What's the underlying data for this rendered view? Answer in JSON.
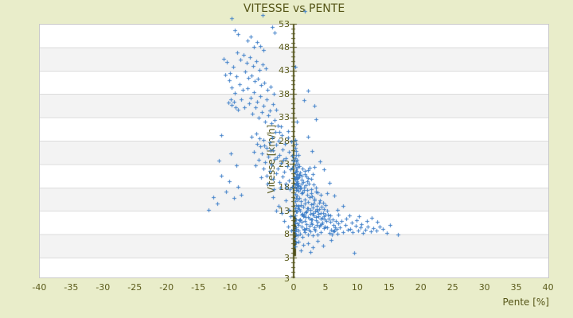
{
  "colors": {
    "background": "#e9edca",
    "plot_background": "#ffffff",
    "band": "#f3f3f3",
    "gridline": "#dcdcdc",
    "plot_border": "#c9c9c9",
    "axis": "#55551c",
    "axis_cluster": "#50501a",
    "text": "#5b5b1b",
    "marker": "#3d7ec8"
  },
  "chart_data": {
    "type": "scatter",
    "title": "VITESSE vs PENTE",
    "xlabel": "Pente [%]",
    "ylabel": "Vitesse [km/h]",
    "xlim": [
      -40,
      40
    ],
    "ylim": [
      3,
      53
    ],
    "x_ticks": [
      -40,
      -35,
      -30,
      -25,
      -20,
      -15,
      -10,
      -5,
      0,
      5,
      10,
      15,
      20,
      25,
      30,
      35,
      40
    ],
    "y_ticks": [
      53,
      48,
      43,
      38,
      33,
      28,
      23,
      18,
      13,
      8,
      3
    ],
    "y_axis_bottom_label": "3",
    "legend": "none",
    "grid": "horizontal-bands",
    "marker": "plus",
    "y_axis_position_x": 0,
    "axis_point_cluster": {
      "x": 0,
      "y_from": 3.3,
      "y_to": 11.9
    },
    "points": [
      [
        0.4,
        9.1
      ],
      [
        0.6,
        10.3
      ],
      [
        0.8,
        8.7
      ],
      [
        1.0,
        11.2
      ],
      [
        1.2,
        9.6
      ],
      [
        1.4,
        12.4
      ],
      [
        1.6,
        8.9
      ],
      [
        1.8,
        10.8
      ],
      [
        2.0,
        9.3
      ],
      [
        2.2,
        11.7
      ],
      [
        0.5,
        12.9
      ],
      [
        0.7,
        14.1
      ],
      [
        0.9,
        13.3
      ],
      [
        1.1,
        15.0
      ],
      [
        1.3,
        12.2
      ],
      [
        1.5,
        13.8
      ],
      [
        1.7,
        14.6
      ],
      [
        1.9,
        12.7
      ],
      [
        2.1,
        13.5
      ],
      [
        2.3,
        14.9
      ],
      [
        2.5,
        9.8
      ],
      [
        2.7,
        11.1
      ],
      [
        2.9,
        10.2
      ],
      [
        3.1,
        12.0
      ],
      [
        3.3,
        9.5
      ],
      [
        3.5,
        11.6
      ],
      [
        3.7,
        10.7
      ],
      [
        3.9,
        12.3
      ],
      [
        4.1,
        9.9
      ],
      [
        4.3,
        11.3
      ],
      [
        2.6,
        13.2
      ],
      [
        2.8,
        14.4
      ],
      [
        3.0,
        13.7
      ],
      [
        3.2,
        15.2
      ],
      [
        3.4,
        12.8
      ],
      [
        3.6,
        14.0
      ],
      [
        3.8,
        13.1
      ],
      [
        4.0,
        14.7
      ],
      [
        4.2,
        12.5
      ],
      [
        4.4,
        13.9
      ],
      [
        0.6,
        7.8
      ],
      [
        1.0,
        8.1
      ],
      [
        1.4,
        7.5
      ],
      [
        1.8,
        8.4
      ],
      [
        2.2,
        7.9
      ],
      [
        2.6,
        8.6
      ],
      [
        3.0,
        7.7
      ],
      [
        3.4,
        8.8
      ],
      [
        3.8,
        8.0
      ],
      [
        4.2,
        8.5
      ],
      [
        4.5,
        10.4
      ],
      [
        4.7,
        11.8
      ],
      [
        4.9,
        9.7
      ],
      [
        5.1,
        10.9
      ],
      [
        5.3,
        9.4
      ],
      [
        5.5,
        11.4
      ],
      [
        4.6,
        12.6
      ],
      [
        4.8,
        13.4
      ],
      [
        5.0,
        12.1
      ],
      [
        5.2,
        13.0
      ],
      [
        0.5,
        16.2
      ],
      [
        0.9,
        15.7
      ],
      [
        1.3,
        16.8
      ],
      [
        1.7,
        15.4
      ],
      [
        2.1,
        16.5
      ],
      [
        2.5,
        15.9
      ],
      [
        2.9,
        16.1
      ],
      [
        3.3,
        15.6
      ],
      [
        3.7,
        16.9
      ],
      [
        4.1,
        15.3
      ],
      [
        0.8,
        9.9
      ],
      [
        1.2,
        10.6
      ],
      [
        1.6,
        9.2
      ],
      [
        2.0,
        10.1
      ],
      [
        2.4,
        9.0
      ],
      [
        2.8,
        10.5
      ],
      [
        3.2,
        9.1
      ],
      [
        3.6,
        10.0
      ],
      [
        4.0,
        9.6
      ],
      [
        4.4,
        10.2
      ],
      [
        1.0,
        13.0
      ],
      [
        1.5,
        11.9
      ],
      [
        2.0,
        12.9
      ],
      [
        2.5,
        11.4
      ],
      [
        3.0,
        12.6
      ],
      [
        3.5,
        11.0
      ],
      [
        4.0,
        13.3
      ],
      [
        4.5,
        11.5
      ],
      [
        5.0,
        14.2
      ],
      [
        5.4,
        12.2
      ],
      [
        0.7,
        17.3
      ],
      [
        1.4,
        17.0
      ],
      [
        2.1,
        17.4
      ],
      [
        2.8,
        16.7
      ],
      [
        3.5,
        17.1
      ],
      [
        4.2,
        16.4
      ],
      [
        1.1,
        14.3
      ],
      [
        2.3,
        13.6
      ],
      [
        3.1,
        14.5
      ],
      [
        4.6,
        14.8
      ],
      [
        0.9,
        11.0
      ],
      [
        1.9,
        11.6
      ],
      [
        2.9,
        11.2
      ],
      [
        3.9,
        11.8
      ],
      [
        4.9,
        11.1
      ],
      [
        0.6,
        13.6
      ],
      [
        1.6,
        12.1
      ],
      [
        2.6,
        12.4
      ],
      [
        3.6,
        13.4
      ],
      [
        4.8,
        9.3
      ],
      [
        5.7,
        10.6
      ],
      [
        5.9,
        9.0
      ],
      [
        6.1,
        11.2
      ],
      [
        6.3,
        10.0
      ],
      [
        6.5,
        9.5
      ],
      [
        5.8,
        12.0
      ],
      [
        6.2,
        8.6
      ],
      [
        6.6,
        10.8
      ],
      [
        6.8,
        9.2
      ],
      [
        7.0,
        10.3
      ],
      [
        0.8,
        18.3
      ],
      [
        1.2,
        19.6
      ],
      [
        1.6,
        18.0
      ],
      [
        2.0,
        20.4
      ],
      [
        2.4,
        18.8
      ],
      [
        2.8,
        19.9
      ],
      [
        1.0,
        21.2
      ],
      [
        1.4,
        22.0
      ],
      [
        1.8,
        20.9
      ],
      [
        2.2,
        21.7
      ],
      [
        0.7,
        20.1
      ],
      [
        1.1,
        17.9
      ],
      [
        1.5,
        19.2
      ],
      [
        1.9,
        18.5
      ],
      [
        2.3,
        20.0
      ],
      [
        2.7,
        17.7
      ],
      [
        3.1,
        18.6
      ],
      [
        3.5,
        17.9
      ],
      [
        1.3,
        20.6
      ],
      [
        0.9,
        22.5
      ],
      [
        1.7,
        21.5
      ],
      [
        2.5,
        22.3
      ],
      [
        3.0,
        20.8
      ],
      [
        0.6,
        19.0
      ],
      [
        2.1,
        19.3
      ],
      [
        0.3,
        10.5
      ],
      [
        0.4,
        11.2
      ],
      [
        0.3,
        12.0
      ],
      [
        0.4,
        12.8
      ],
      [
        0.3,
        13.5
      ],
      [
        0.4,
        14.3
      ],
      [
        0.3,
        15.1
      ],
      [
        0.4,
        15.8
      ],
      [
        0.3,
        16.6
      ],
      [
        0.4,
        17.4
      ],
      [
        0.3,
        18.1
      ],
      [
        0.4,
        18.9
      ],
      [
        0.3,
        19.7
      ],
      [
        0.4,
        20.4
      ],
      [
        0.3,
        21.2
      ],
      [
        0.4,
        22.0
      ],
      [
        0.3,
        22.7
      ],
      [
        0.4,
        23.5
      ],
      [
        0.3,
        24.3
      ],
      [
        0.4,
        25.0
      ],
      [
        0.5,
        19.3
      ],
      [
        0.5,
        20.8
      ],
      [
        0.5,
        17.8
      ],
      [
        0.5,
        16.2
      ],
      [
        0.5,
        21.6
      ],
      [
        0.6,
        18.5
      ],
      [
        0.6,
        20.0
      ],
      [
        0.6,
        22.4
      ],
      [
        0.5,
        23.9
      ],
      [
        0.6,
        15.5
      ],
      [
        0.4,
        25.8
      ],
      [
        0.3,
        26.5
      ],
      [
        0.4,
        27.3
      ],
      [
        0.3,
        28.1
      ],
      [
        0.4,
        9.4
      ],
      [
        0.3,
        8.6
      ],
      [
        0.4,
        7.9
      ],
      [
        0.3,
        7.1
      ],
      [
        0.4,
        6.2
      ],
      [
        0.3,
        5.4
      ],
      [
        -0.3,
        18.2
      ],
      [
        -0.8,
        19.5
      ],
      [
        -1.3,
        18.8
      ],
      [
        -1.8,
        20.3
      ],
      [
        -2.3,
        19.1
      ],
      [
        -2.8,
        21.0
      ],
      [
        -3.3,
        19.8
      ],
      [
        -3.8,
        21.5
      ],
      [
        -4.3,
        20.6
      ],
      [
        -4.8,
        22.1
      ],
      [
        -0.5,
        21.8
      ],
      [
        -1.0,
        22.6
      ],
      [
        -1.5,
        21.3
      ],
      [
        -2.0,
        23.2
      ],
      [
        -2.5,
        22.0
      ],
      [
        -3.0,
        24.1
      ],
      [
        -3.5,
        22.9
      ],
      [
        -4.0,
        24.6
      ],
      [
        -4.5,
        23.4
      ],
      [
        -5.0,
        25.2
      ],
      [
        -0.2,
        24.8
      ],
      [
        -0.7,
        25.6
      ],
      [
        -1.2,
        24.3
      ],
      [
        -1.7,
        26.2
      ],
      [
        -2.2,
        25.0
      ],
      [
        -2.7,
        27.1
      ],
      [
        -3.2,
        25.9
      ],
      [
        -3.7,
        27.6
      ],
      [
        -4.2,
        26.4
      ],
      [
        -4.7,
        28.2
      ],
      [
        -0.4,
        27.8
      ],
      [
        -0.9,
        28.6
      ],
      [
        -1.4,
        27.3
      ],
      [
        -1.9,
        29.2
      ],
      [
        -2.4,
        28.0
      ],
      [
        -2.9,
        29.8
      ],
      [
        -3.4,
        28.7
      ],
      [
        -5.2,
        26.8
      ],
      [
        -5.5,
        24.0
      ],
      [
        -5.8,
        27.4
      ],
      [
        0.2,
        18.7
      ],
      [
        0.5,
        19.9
      ],
      [
        0.8,
        18.4
      ],
      [
        0.3,
        21.4
      ],
      [
        0.6,
        23.1
      ],
      [
        0.9,
        20.7
      ],
      [
        0.2,
        26.5
      ],
      [
        0.7,
        24.9
      ],
      [
        -0.1,
        23.7
      ],
      [
        -0.6,
        17.6
      ],
      [
        -1.1,
        17.9
      ],
      [
        -2.1,
        18.0
      ],
      [
        -3.1,
        17.7
      ],
      [
        -4.1,
        18.9
      ],
      [
        -5.1,
        20.1
      ],
      [
        -6.0,
        22.7
      ],
      [
        -6.3,
        25.7
      ],
      [
        -6.6,
        28.9
      ],
      [
        -5.9,
        29.5
      ],
      [
        -0.9,
        30.0
      ],
      [
        -1.6,
        23.9
      ],
      [
        -2.6,
        24.4
      ],
      [
        -3.6,
        26.0
      ],
      [
        -4.6,
        27.0
      ],
      [
        -5.4,
        28.5
      ],
      [
        1.0,
        17.8
      ],
      [
        1.3,
        18.9
      ],
      [
        1.6,
        17.5
      ],
      [
        0.1,
        20.2
      ],
      [
        -0.2,
        22.3
      ],
      [
        -2.5,
        31.2
      ],
      [
        -3.0,
        32.5
      ],
      [
        -3.5,
        31.8
      ],
      [
        -4.0,
        33.4
      ],
      [
        -4.5,
        32.1
      ],
      [
        -5.0,
        34.2
      ],
      [
        -5.5,
        33.0
      ],
      [
        -6.0,
        35.1
      ],
      [
        -6.5,
        33.8
      ],
      [
        -7.0,
        36.0
      ],
      [
        -2.8,
        34.7
      ],
      [
        -3.3,
        35.9
      ],
      [
        -3.8,
        34.4
      ],
      [
        -4.3,
        36.8
      ],
      [
        -4.8,
        35.5
      ],
      [
        -5.3,
        37.6
      ],
      [
        -5.8,
        36.3
      ],
      [
        -6.3,
        38.4
      ],
      [
        -6.8,
        37.1
      ],
      [
        -7.3,
        39.2
      ],
      [
        -3.1,
        38.0
      ],
      [
        -3.6,
        39.6
      ],
      [
        -4.1,
        38.8
      ],
      [
        -4.6,
        40.4
      ],
      [
        -5.1,
        39.9
      ],
      [
        -5.6,
        41.2
      ],
      [
        -6.1,
        40.7
      ],
      [
        -6.6,
        42.0
      ],
      [
        -7.1,
        41.5
      ],
      [
        -7.6,
        42.8
      ],
      [
        -4.4,
        43.5
      ],
      [
        -4.9,
        44.3
      ],
      [
        -5.4,
        43.1
      ],
      [
        -5.9,
        45.0
      ],
      [
        -6.4,
        44.0
      ],
      [
        -6.9,
        45.8
      ],
      [
        -7.4,
        44.7
      ],
      [
        -7.9,
        46.3
      ],
      [
        -8.4,
        45.4
      ],
      [
        -8.9,
        46.9
      ],
      [
        -8.0,
        38.9
      ],
      [
        -8.5,
        40.0
      ],
      [
        -9.0,
        41.7
      ],
      [
        -9.5,
        43.9
      ],
      [
        -10.0,
        42.4
      ],
      [
        -10.5,
        44.9
      ],
      [
        -2.2,
        29.8
      ],
      [
        -2.0,
        31.0
      ],
      [
        -7.8,
        35.2
      ],
      [
        -8.2,
        36.9
      ],
      [
        -9.2,
        38.2
      ],
      [
        -9.8,
        39.4
      ],
      [
        -10.2,
        40.9
      ],
      [
        -10.8,
        42.2
      ],
      [
        -11.0,
        45.6
      ],
      [
        -5.2,
        48.3
      ],
      [
        -5.7,
        49.1
      ],
      [
        -6.2,
        48.0
      ],
      [
        -6.7,
        50.2
      ],
      [
        -7.2,
        49.5
      ],
      [
        -4.7,
        47.4
      ],
      [
        -8.7,
        50.8
      ],
      [
        -9.3,
        51.6
      ],
      [
        -4.9,
        54.9
      ],
      [
        1.8,
        55.7
      ],
      [
        -9.8,
        54.2
      ],
      [
        -3.4,
        52.3
      ],
      [
        -3.0,
        51.1
      ],
      [
        5.6,
        8.2
      ],
      [
        6.0,
        7.9
      ],
      [
        6.4,
        8.8
      ],
      [
        6.9,
        8.1
      ],
      [
        7.3,
        9.4
      ],
      [
        7.7,
        8.5
      ],
      [
        8.1,
        9.9
      ],
      [
        8.5,
        8.9
      ],
      [
        8.9,
        9.2
      ],
      [
        9.3,
        8.4
      ],
      [
        9.7,
        9.8
      ],
      [
        10.1,
        8.7
      ],
      [
        10.5,
        9.5
      ],
      [
        10.9,
        8.2
      ],
      [
        11.3,
        9.0
      ],
      [
        11.7,
        9.7
      ],
      [
        12.1,
        8.6
      ],
      [
        12.5,
        9.3
      ],
      [
        13.0,
        8.8
      ],
      [
        13.5,
        9.6
      ],
      [
        7.5,
        10.8
      ],
      [
        8.3,
        11.3
      ],
      [
        9.1,
        10.4
      ],
      [
        9.9,
        11.0
      ],
      [
        10.7,
        10.2
      ],
      [
        11.5,
        10.9
      ],
      [
        12.3,
        11.5
      ],
      [
        13.2,
        10.6
      ],
      [
        14.0,
        9.1
      ],
      [
        14.6,
        8.3
      ],
      [
        15.2,
        9.9
      ],
      [
        16.4,
        8.0
      ],
      [
        7.0,
        12.2
      ],
      [
        8.7,
        12.0
      ],
      [
        10.3,
        11.9
      ],
      [
        -8.3,
        16.5
      ],
      [
        -8.8,
        18.2
      ],
      [
        -9.4,
        15.8
      ],
      [
        -10.1,
        19.4
      ],
      [
        -10.7,
        17.1
      ],
      [
        -11.4,
        20.6
      ],
      [
        -12.0,
        14.5
      ],
      [
        -12.6,
        16.0
      ],
      [
        -13.4,
        13.2
      ],
      [
        -9.0,
        22.8
      ],
      [
        -9.9,
        25.3
      ],
      [
        -11.8,
        23.7
      ],
      [
        0.8,
        6.4
      ],
      [
        1.5,
        5.8
      ],
      [
        2.2,
        6.1
      ],
      [
        3.0,
        5.2
      ],
      [
        3.8,
        6.6
      ],
      [
        4.6,
        5.5
      ],
      [
        1.1,
        4.6
      ],
      [
        2.6,
        4.2
      ],
      [
        9.5,
        4.1
      ],
      [
        5.9,
        6.8
      ],
      [
        0.5,
        32.1
      ],
      [
        2.3,
        28.9
      ],
      [
        3.5,
        32.6
      ],
      [
        4.1,
        23.5
      ],
      [
        2.9,
        25.8
      ],
      [
        4.8,
        21.9
      ],
      [
        3.3,
        22.4
      ],
      [
        5.6,
        19.0
      ],
      [
        6.4,
        16.2
      ],
      [
        7.8,
        14.0
      ],
      [
        5.2,
        16.8
      ],
      [
        6.9,
        13.2
      ],
      [
        0.3,
        43.8
      ],
      [
        2.3,
        38.7
      ],
      [
        1.6,
        36.6
      ],
      [
        3.2,
        35.4
      ],
      [
        -1.2,
        15.3
      ],
      [
        -2.4,
        14.1
      ],
      [
        -0.8,
        13.2
      ],
      [
        -1.9,
        12.5
      ],
      [
        -3.3,
        15.9
      ],
      [
        -0.5,
        11.8
      ],
      [
        -1.5,
        10.9
      ],
      [
        -0.9,
        9.6
      ],
      [
        -2.8,
        13.0
      ],
      [
        -0.4,
        8.8
      ],
      [
        -9.4,
        36.4
      ],
      [
        -9.7,
        35.7
      ],
      [
        -9.1,
        35.2
      ],
      [
        -9.9,
        36.9
      ],
      [
        -8.8,
        34.6
      ],
      [
        -10.3,
        36.1
      ],
      [
        -11.4,
        29.2
      ]
    ]
  }
}
